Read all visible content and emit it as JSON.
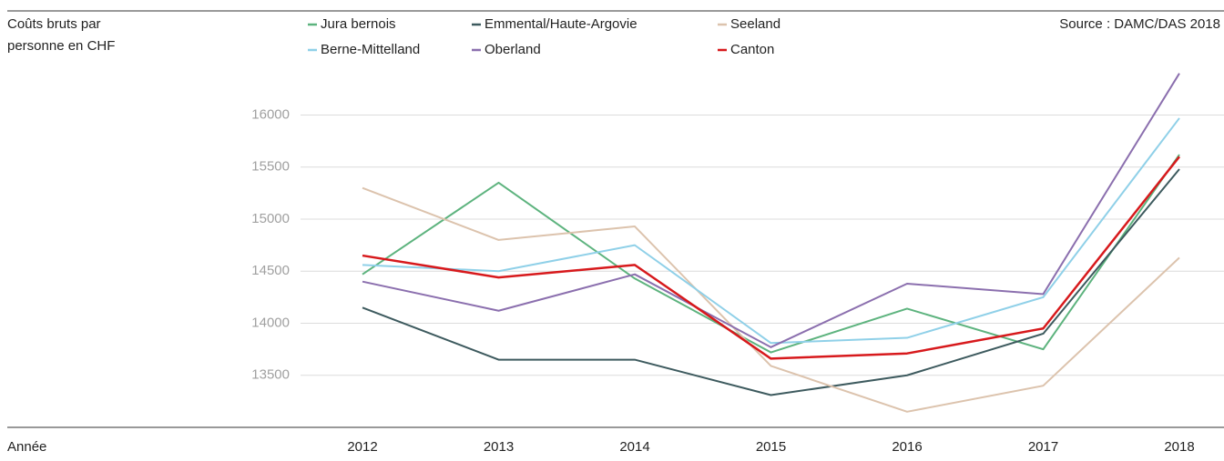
{
  "chart_data": {
    "type": "line",
    "ylabel": [
      "Coûts bruts par",
      "personne en CHF"
    ],
    "xlabel": "Année",
    "source": "Source : DAMC/DAS 2018",
    "categories": [
      "2012",
      "2013",
      "2014",
      "2015",
      "2016",
      "2017",
      "2018"
    ],
    "series": [
      {
        "name": "Jura bernois",
        "color": "#5db37e",
        "values": [
          14470,
          15350,
          14430,
          13720,
          14140,
          13750,
          15620
        ]
      },
      {
        "name": "Emmental/Haute-Argovie",
        "color": "#3d5a5e",
        "values": [
          14150,
          13650,
          13650,
          13310,
          13500,
          13900,
          15480
        ]
      },
      {
        "name": "Seeland",
        "color": "#dcc3ad",
        "values": [
          15300,
          14800,
          14930,
          13590,
          13150,
          13400,
          14630
        ]
      },
      {
        "name": "Berne-Mittelland",
        "color": "#8fd0e8",
        "values": [
          14560,
          14500,
          14750,
          13810,
          13860,
          14250,
          15970
        ]
      },
      {
        "name": "Oberland",
        "color": "#8b6fae",
        "values": [
          14400,
          14120,
          14470,
          13770,
          14380,
          14280,
          16400
        ]
      },
      {
        "name": "Canton",
        "color": "#d7191c",
        "values": [
          14650,
          14440,
          14560,
          13660,
          13710,
          13950,
          15600
        ]
      }
    ],
    "ylim": [
      13000,
      17000
    ],
    "yticks": [
      13500,
      14000,
      14500,
      15000,
      15500,
      16000
    ],
    "grid": true
  }
}
